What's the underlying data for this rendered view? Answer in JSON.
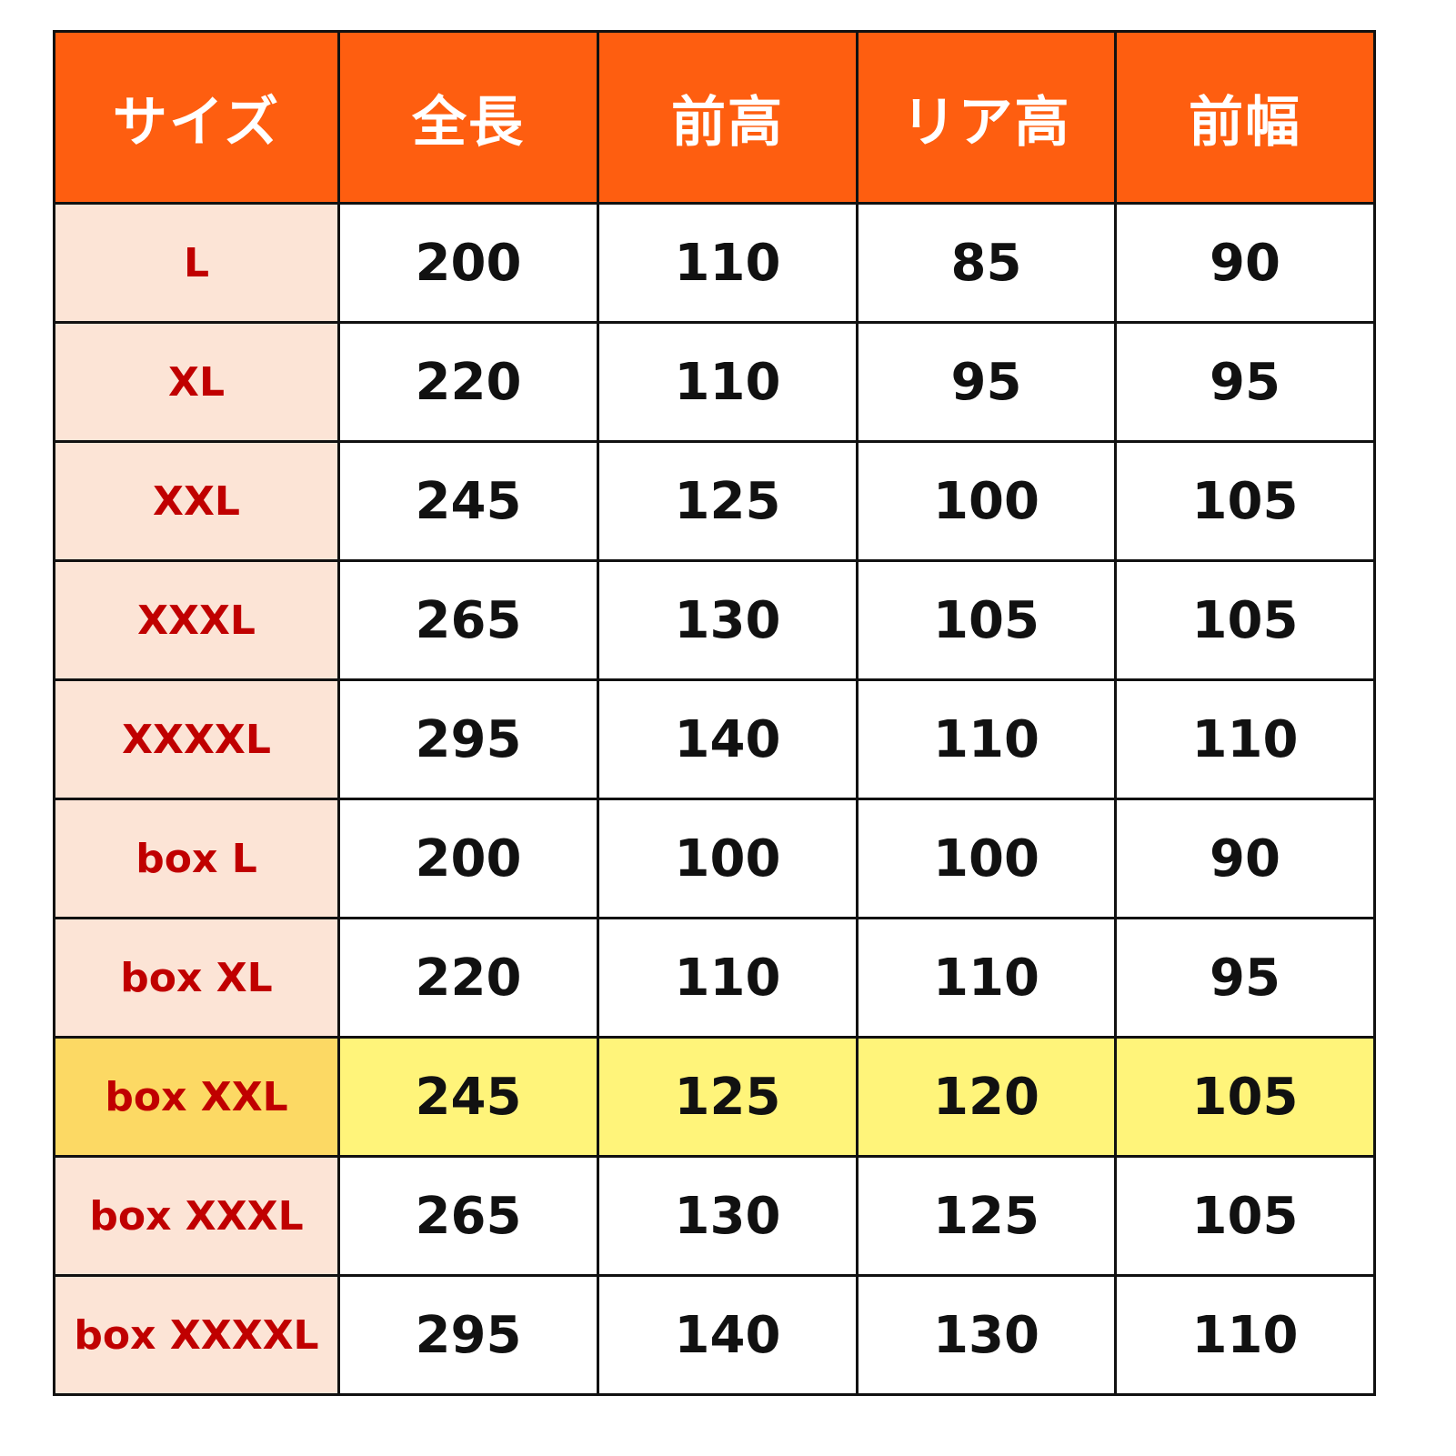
{
  "headers": [
    "サイズ",
    "全長",
    "前高",
    "リア高",
    "前幅"
  ],
  "highlight_color": "#fff47a",
  "header_color": "#fe5e10",
  "rows": [
    {
      "size": "L",
      "values": [
        "200",
        "110",
        "85",
        "90"
      ]
    },
    {
      "size": "XL",
      "values": [
        "220",
        "110",
        "95",
        "95"
      ]
    },
    {
      "size": "XXL",
      "values": [
        "245",
        "125",
        "100",
        "105"
      ]
    },
    {
      "size": "XXXL",
      "values": [
        "265",
        "130",
        "105",
        "105"
      ]
    },
    {
      "size": "XXXXL",
      "values": [
        "295",
        "140",
        "110",
        "110"
      ]
    },
    {
      "size": "box L",
      "values": [
        "200",
        "100",
        "100",
        "90"
      ]
    },
    {
      "size": "box XL",
      "values": [
        "220",
        "110",
        "110",
        "95"
      ]
    },
    {
      "size": "box XXL",
      "values": [
        "245",
        "125",
        "120",
        "105"
      ],
      "highlighted": true
    },
    {
      "size": "box XXXL",
      "values": [
        "265",
        "130",
        "125",
        "105"
      ]
    },
    {
      "size": "box XXXXL",
      "values": [
        "295",
        "140",
        "130",
        "110"
      ]
    }
  ]
}
